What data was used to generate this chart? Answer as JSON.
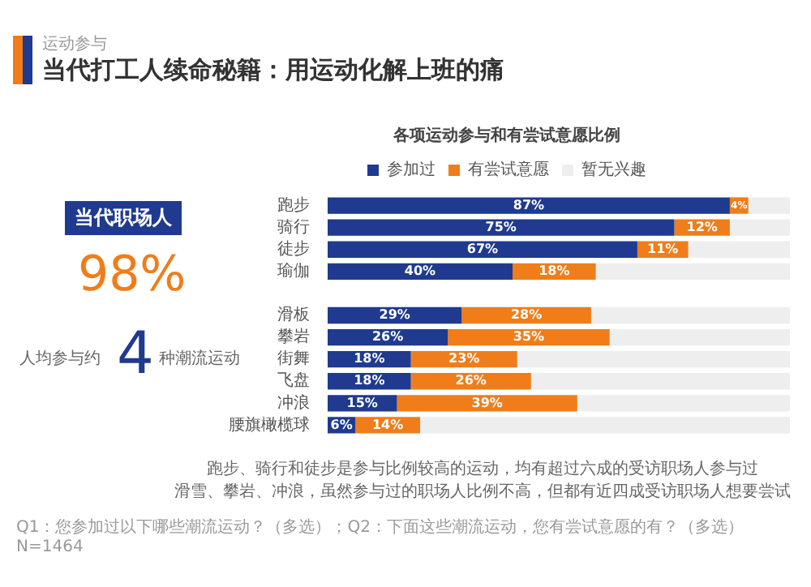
{
  "chart_data": {
    "type": "bar",
    "orientation": "horizontal",
    "stacked": true,
    "title": "各项运动参与和有尝试意愿比例",
    "categories": [
      "跑步",
      "骑行",
      "徒步",
      "瑜伽",
      null,
      "滑板",
      "攀岩",
      "街舞",
      "飞盘",
      "冲浪",
      "腰旗橄榄球"
    ],
    "series": [
      {
        "name": "参加过",
        "color": "#1f3a8f",
        "values": [
          87,
          75,
          67,
          40,
          null,
          29,
          26,
          18,
          18,
          15,
          6
        ],
        "value_labels": [
          "87%",
          "75%",
          "67%",
          "40%",
          null,
          "29%",
          "26%",
          "18%",
          "18%",
          "15%",
          "6%"
        ]
      },
      {
        "name": "有尝试意愿",
        "color": "#f07d1a",
        "values": [
          4,
          12,
          11,
          18,
          null,
          28,
          35,
          23,
          26,
          39,
          14
        ],
        "value_labels": [
          "4%",
          "12%",
          "11%",
          "18%",
          null,
          "28%",
          "35%",
          "23%",
          "26%",
          "39%",
          "14%"
        ]
      },
      {
        "name": "暂无兴趣",
        "color": "#eeeeee",
        "values": [
          9,
          13,
          22,
          42,
          null,
          43,
          39,
          59,
          56,
          46,
          80
        ]
      }
    ],
    "xlim": [
      0,
      100
    ],
    "tick_labels": "y",
    "grid": false,
    "legend": "top",
    "annotations": [
      "运动参与",
      "当代打工人续命秘籍：用运动化解上班的痛",
      "当代职场人",
      "98%",
      "人均参与约",
      "4",
      "种潮流运动",
      "跑步、骑行和徒步是参与比例较高的运动，均有超过六成的受访职场人参与过",
      "滑雪、攀岩、冲浪，虽然参与过的职场人比例不高，但都有近四成受访职场人想要尝试",
      "Q1：您参加过以下哪些潮流运动？（多选）；Q2：下面这些潮流运动，您有尝试意愿的有？（多选） N=1464"
    ]
  }
}
